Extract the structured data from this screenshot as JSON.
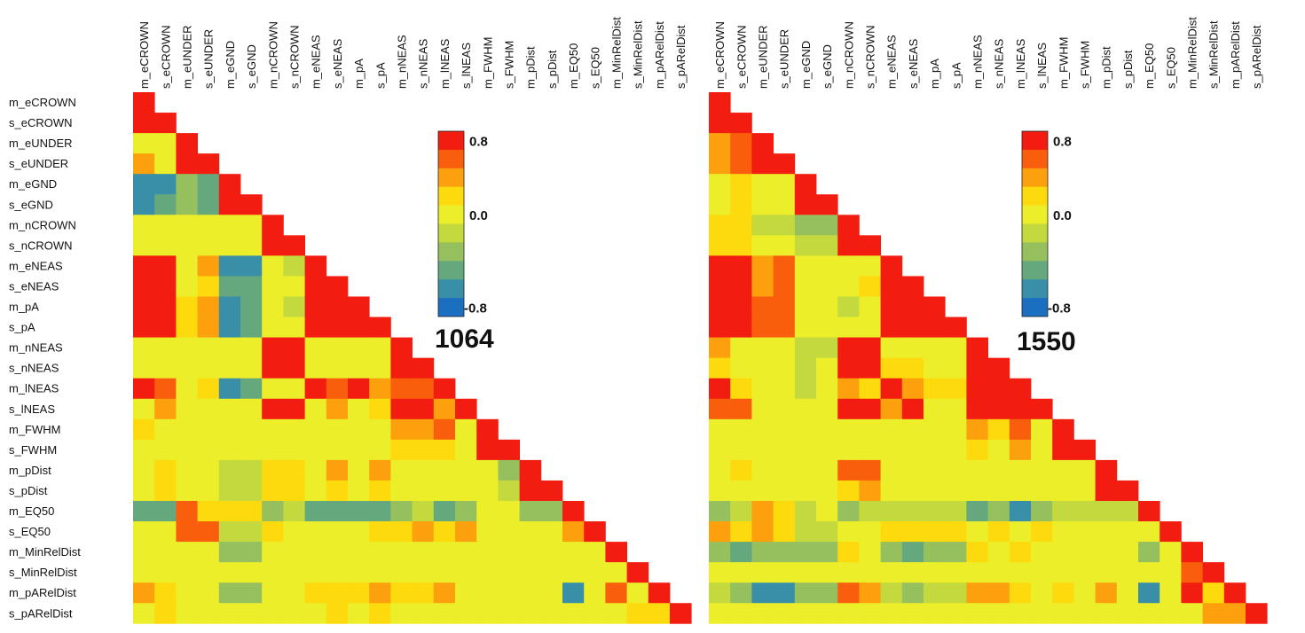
{
  "chart_data": {
    "type": "heatmap",
    "layout": "lower-triangular",
    "variables": [
      "m_eCROWN",
      "s_eCROWN",
      "m_eUNDER",
      "s_eUNDER",
      "m_eGND",
      "s_eGND",
      "m_nCROWN",
      "s_nCROWN",
      "m_eNEAS",
      "s_eNEAS",
      "m_pA",
      "s_pA",
      "m_nNEAS",
      "s_nNEAS",
      "m_lNEAS",
      "s_lNEAS",
      "m_FWHM",
      "s_FWHM",
      "m_pDist",
      "s_pDist",
      "m_EQ50",
      "s_EQ50",
      "m_MinRelDist",
      "s_MinRelDist",
      "m_pARelDist",
      "s_pARelDist"
    ],
    "color_scale": {
      "ticks": [
        "0.8",
        "0.0",
        "-0.8"
      ],
      "range": [
        -0.8,
        0.8
      ],
      "colors": [
        "#1a6fc0",
        "#3a8fa8",
        "#66a87e",
        "#96c05e",
        "#c3d93e",
        "#ecee2a",
        "#fdda0d",
        "#fca10d",
        "#f95e0c",
        "#f21d10"
      ]
    },
    "panels": [
      {
        "label": "1064",
        "matrix": [
          [
            1.0
          ],
          [
            0.65,
            1.0
          ],
          [
            0.1,
            0.1,
            1.0
          ],
          [
            0.4,
            0.15,
            1.0,
            1.0
          ],
          [
            -0.6,
            -0.5,
            -0.3,
            -0.4,
            1.0
          ],
          [
            -0.55,
            -0.4,
            -0.25,
            -0.35,
            1.0,
            1.0
          ],
          [
            0.0,
            0.0,
            0.0,
            0.0,
            0.0,
            0.0,
            1.0
          ],
          [
            0.0,
            0.0,
            0.05,
            0.05,
            0.05,
            0.05,
            0.9,
            1.0
          ],
          [
            0.95,
            0.85,
            0.15,
            0.4,
            -0.55,
            -0.5,
            0.0,
            -0.05,
            1.0
          ],
          [
            0.8,
            0.95,
            0.15,
            0.3,
            -0.45,
            -0.35,
            0.05,
            0.0,
            0.8,
            1.0
          ],
          [
            0.95,
            0.7,
            0.2,
            0.4,
            -0.55,
            -0.45,
            0.0,
            -0.05,
            0.95,
            0.8,
            1.0
          ],
          [
            0.9,
            0.95,
            0.2,
            0.35,
            -0.5,
            -0.45,
            0.05,
            0.0,
            0.9,
            0.9,
            0.9,
            1.0
          ],
          [
            0.1,
            0.1,
            0.05,
            0.05,
            0.0,
            0.0,
            0.85,
            0.8,
            0.1,
            0.1,
            0.05,
            0.05,
            1.0
          ],
          [
            0.05,
            0.1,
            0.05,
            0.05,
            0.0,
            0.0,
            0.85,
            0.9,
            0.1,
            0.1,
            0.05,
            0.05,
            0.95,
            1.0
          ],
          [
            0.9,
            0.5,
            0.1,
            0.2,
            -0.55,
            -0.45,
            0.15,
            0.1,
            0.95,
            0.55,
            0.75,
            0.45,
            0.55,
            0.55,
            1.0
          ],
          [
            0.1,
            0.35,
            0.05,
            0.1,
            0.0,
            0.05,
            0.7,
            0.75,
            0.1,
            0.45,
            0.1,
            0.2,
            0.8,
            0.8,
            0.35,
            1.0
          ],
          [
            0.2,
            0.15,
            0.0,
            0.0,
            0.0,
            0.0,
            0.05,
            0.05,
            0.15,
            0.1,
            0.15,
            0.15,
            0.45,
            0.4,
            0.55,
            0.1,
            1.0
          ],
          [
            0.1,
            0.1,
            0.0,
            0.0,
            0.0,
            0.0,
            0.05,
            0.05,
            0.1,
            0.05,
            0.1,
            0.1,
            0.3,
            0.3,
            0.25,
            0.15,
            0.65,
            1.0
          ],
          [
            0.1,
            0.3,
            0.05,
            0.1,
            -0.05,
            -0.1,
            0.25,
            0.25,
            0.05,
            0.35,
            0.1,
            0.4,
            0.05,
            0.05,
            0.05,
            0.15,
            0.05,
            -0.3,
            1.0
          ],
          [
            0.05,
            0.2,
            0.05,
            0.05,
            -0.05,
            -0.05,
            0.25,
            0.2,
            0.05,
            0.2,
            0.05,
            0.2,
            0.05,
            0.05,
            0.05,
            0.1,
            0.05,
            -0.15,
            0.95,
            1.0
          ],
          [
            -0.4,
            -0.35,
            0.5,
            0.25,
            0.2,
            0.2,
            -0.2,
            -0.15,
            -0.4,
            -0.35,
            -0.4,
            -0.4,
            -0.2,
            -0.15,
            -0.4,
            -0.2,
            0.1,
            0.1,
            -0.25,
            -0.2,
            1.0
          ],
          [
            0.05,
            0.1,
            0.55,
            0.55,
            -0.05,
            -0.05,
            0.2,
            0.15,
            0.1,
            0.15,
            0.15,
            0.2,
            0.3,
            0.35,
            0.25,
            0.45,
            0.1,
            0.05,
            0.1,
            0.1,
            0.45,
            1.0
          ],
          [
            0.05,
            0.1,
            0.15,
            0.1,
            -0.3,
            -0.25,
            0.05,
            0.05,
            0.05,
            0.1,
            0.1,
            0.1,
            0.1,
            0.05,
            0.1,
            0.05,
            0.1,
            0.05,
            0.15,
            0.1,
            0.1,
            0.15,
            1.0
          ],
          [
            0.05,
            0.05,
            0.1,
            0.05,
            0.05,
            0.05,
            0.05,
            0.05,
            0.05,
            0.05,
            0.05,
            0.05,
            0.05,
            0.05,
            0.05,
            0.05,
            0.05,
            0.05,
            0.05,
            0.05,
            0.1,
            0.05,
            0.15,
            1.0
          ],
          [
            0.35,
            0.3,
            0.1,
            0.1,
            -0.3,
            -0.25,
            0.1,
            0.1,
            0.3,
            0.3,
            0.3,
            0.35,
            0.2,
            0.2,
            0.45,
            0.15,
            0.05,
            0.05,
            0.1,
            0.15,
            -0.6,
            0.0,
            0.5,
            0.0,
            1.0
          ],
          [
            0.05,
            0.25,
            0.1,
            0.05,
            0.0,
            0.0,
            0.05,
            0.05,
            0.1,
            0.2,
            0.1,
            0.2,
            0.05,
            0.05,
            0.05,
            0.1,
            0.05,
            0.05,
            0.05,
            0.05,
            0.1,
            0.1,
            0.05,
            0.2,
            0.2,
            1.0
          ]
        ]
      },
      {
        "label": "1550",
        "matrix": [
          [
            1.0
          ],
          [
            0.95,
            1.0
          ],
          [
            0.45,
            0.55,
            1.0
          ],
          [
            0.45,
            0.55,
            0.95,
            1.0
          ],
          [
            0.0,
            0.25,
            0.05,
            0.05,
            1.0
          ],
          [
            0.0,
            0.25,
            0.05,
            0.05,
            1.0,
            1.0
          ],
          [
            0.2,
            0.2,
            -0.05,
            -0.05,
            -0.2,
            -0.2,
            1.0
          ],
          [
            0.2,
            0.25,
            0.05,
            0.0,
            -0.15,
            -0.15,
            0.95,
            1.0
          ],
          [
            0.95,
            0.8,
            0.4,
            0.55,
            0.05,
            0.1,
            0.05,
            0.1,
            1.0
          ],
          [
            0.9,
            0.95,
            0.4,
            0.55,
            0.1,
            0.1,
            0.05,
            0.2,
            0.85,
            1.0
          ],
          [
            0.95,
            0.8,
            0.5,
            0.6,
            0.05,
            0.05,
            -0.05,
            0.05,
            0.95,
            0.9,
            1.0
          ],
          [
            0.9,
            0.95,
            0.55,
            0.6,
            0.1,
            0.1,
            0.0,
            0.05,
            0.9,
            0.95,
            0.95,
            1.0
          ],
          [
            0.35,
            0.15,
            0.0,
            0.0,
            -0.05,
            -0.05,
            0.8,
            0.7,
            0.15,
            0.1,
            0.15,
            0.1,
            1.0
          ],
          [
            0.3,
            0.15,
            0.0,
            0.0,
            -0.05,
            0.0,
            0.8,
            0.85,
            0.2,
            0.2,
            0.15,
            0.15,
            0.95,
            1.0
          ],
          [
            0.7,
            0.2,
            0.15,
            0.1,
            -0.05,
            0.0,
            0.35,
            0.2,
            0.8,
            0.45,
            0.3,
            0.2,
            0.9,
            0.85,
            1.0
          ],
          [
            0.5,
            0.55,
            0.05,
            0.05,
            0.0,
            0.05,
            0.7,
            0.7,
            0.45,
            0.75,
            0.15,
            0.15,
            0.8,
            0.85,
            0.7,
            1.0
          ],
          [
            0.05,
            0.05,
            0.0,
            0.0,
            0.0,
            0.0,
            0.1,
            0.1,
            0.1,
            0.1,
            0.05,
            0.05,
            0.35,
            0.25,
            0.6,
            0.1,
            1.0
          ],
          [
            0.05,
            0.05,
            0.0,
            0.0,
            0.0,
            0.0,
            0.1,
            0.05,
            0.05,
            0.05,
            0.05,
            0.05,
            0.3,
            0.15,
            0.45,
            0.15,
            0.9,
            1.0
          ],
          [
            0.05,
            0.2,
            0.05,
            0.05,
            0.0,
            0.0,
            0.55,
            0.5,
            0.05,
            0.1,
            0.05,
            0.1,
            0.1,
            0.1,
            0.1,
            0.15,
            0.05,
            0.05,
            1.0
          ],
          [
            0.1,
            0.15,
            0.05,
            0.05,
            0.0,
            0.0,
            0.3,
            0.4,
            0.05,
            0.1,
            0.05,
            0.05,
            0.1,
            0.1,
            0.1,
            0.1,
            0.05,
            0.05,
            0.95,
            1.0
          ],
          [
            -0.2,
            -0.1,
            0.4,
            0.25,
            -0.05,
            0.05,
            -0.2,
            -0.1,
            -0.15,
            -0.15,
            -0.1,
            -0.1,
            -0.4,
            -0.3,
            -0.55,
            -0.2,
            -0.1,
            -0.05,
            -0.15,
            -0.1,
            1.0
          ],
          [
            0.35,
            0.3,
            0.35,
            0.3,
            -0.15,
            -0.15,
            0.15,
            0.1,
            0.2,
            0.25,
            0.2,
            0.25,
            0.15,
            0.2,
            0.15,
            0.2,
            0.05,
            0.05,
            0.05,
            0.1,
            0.1,
            1.0
          ],
          [
            -0.2,
            -0.4,
            -0.3,
            -0.3,
            -0.3,
            -0.3,
            0.3,
            0.05,
            -0.2,
            -0.35,
            -0.2,
            -0.2,
            0.3,
            0.15,
            0.2,
            0.05,
            0.15,
            0.05,
            0.1,
            0.05,
            -0.2,
            0.1,
            1.0
          ],
          [
            0.05,
            0.05,
            0.1,
            0.05,
            0.05,
            0.05,
            0.05,
            0.05,
            0.05,
            0.05,
            0.05,
            0.05,
            0.05,
            0.05,
            0.05,
            0.05,
            0.05,
            0.05,
            0.05,
            0.05,
            0.05,
            0.05,
            0.5,
            1.0
          ],
          [
            -0.1,
            -0.3,
            -0.55,
            -0.5,
            -0.3,
            -0.25,
            0.55,
            0.35,
            -0.15,
            -0.2,
            -0.15,
            -0.1,
            0.4,
            0.35,
            0.3,
            0.1,
            0.2,
            0.1,
            0.35,
            0.1,
            -0.6,
            0.05,
            0.8,
            0.3,
            1.0
          ],
          [
            0.05,
            0.1,
            0.15,
            0.05,
            0.05,
            0.05,
            0.1,
            0.05,
            0.05,
            0.05,
            0.05,
            0.05,
            0.05,
            0.05,
            0.05,
            0.05,
            0.05,
            0.05,
            0.05,
            0.05,
            0.1,
            0.1,
            0.1,
            0.4,
            0.35,
            1.0
          ]
        ]
      }
    ]
  }
}
